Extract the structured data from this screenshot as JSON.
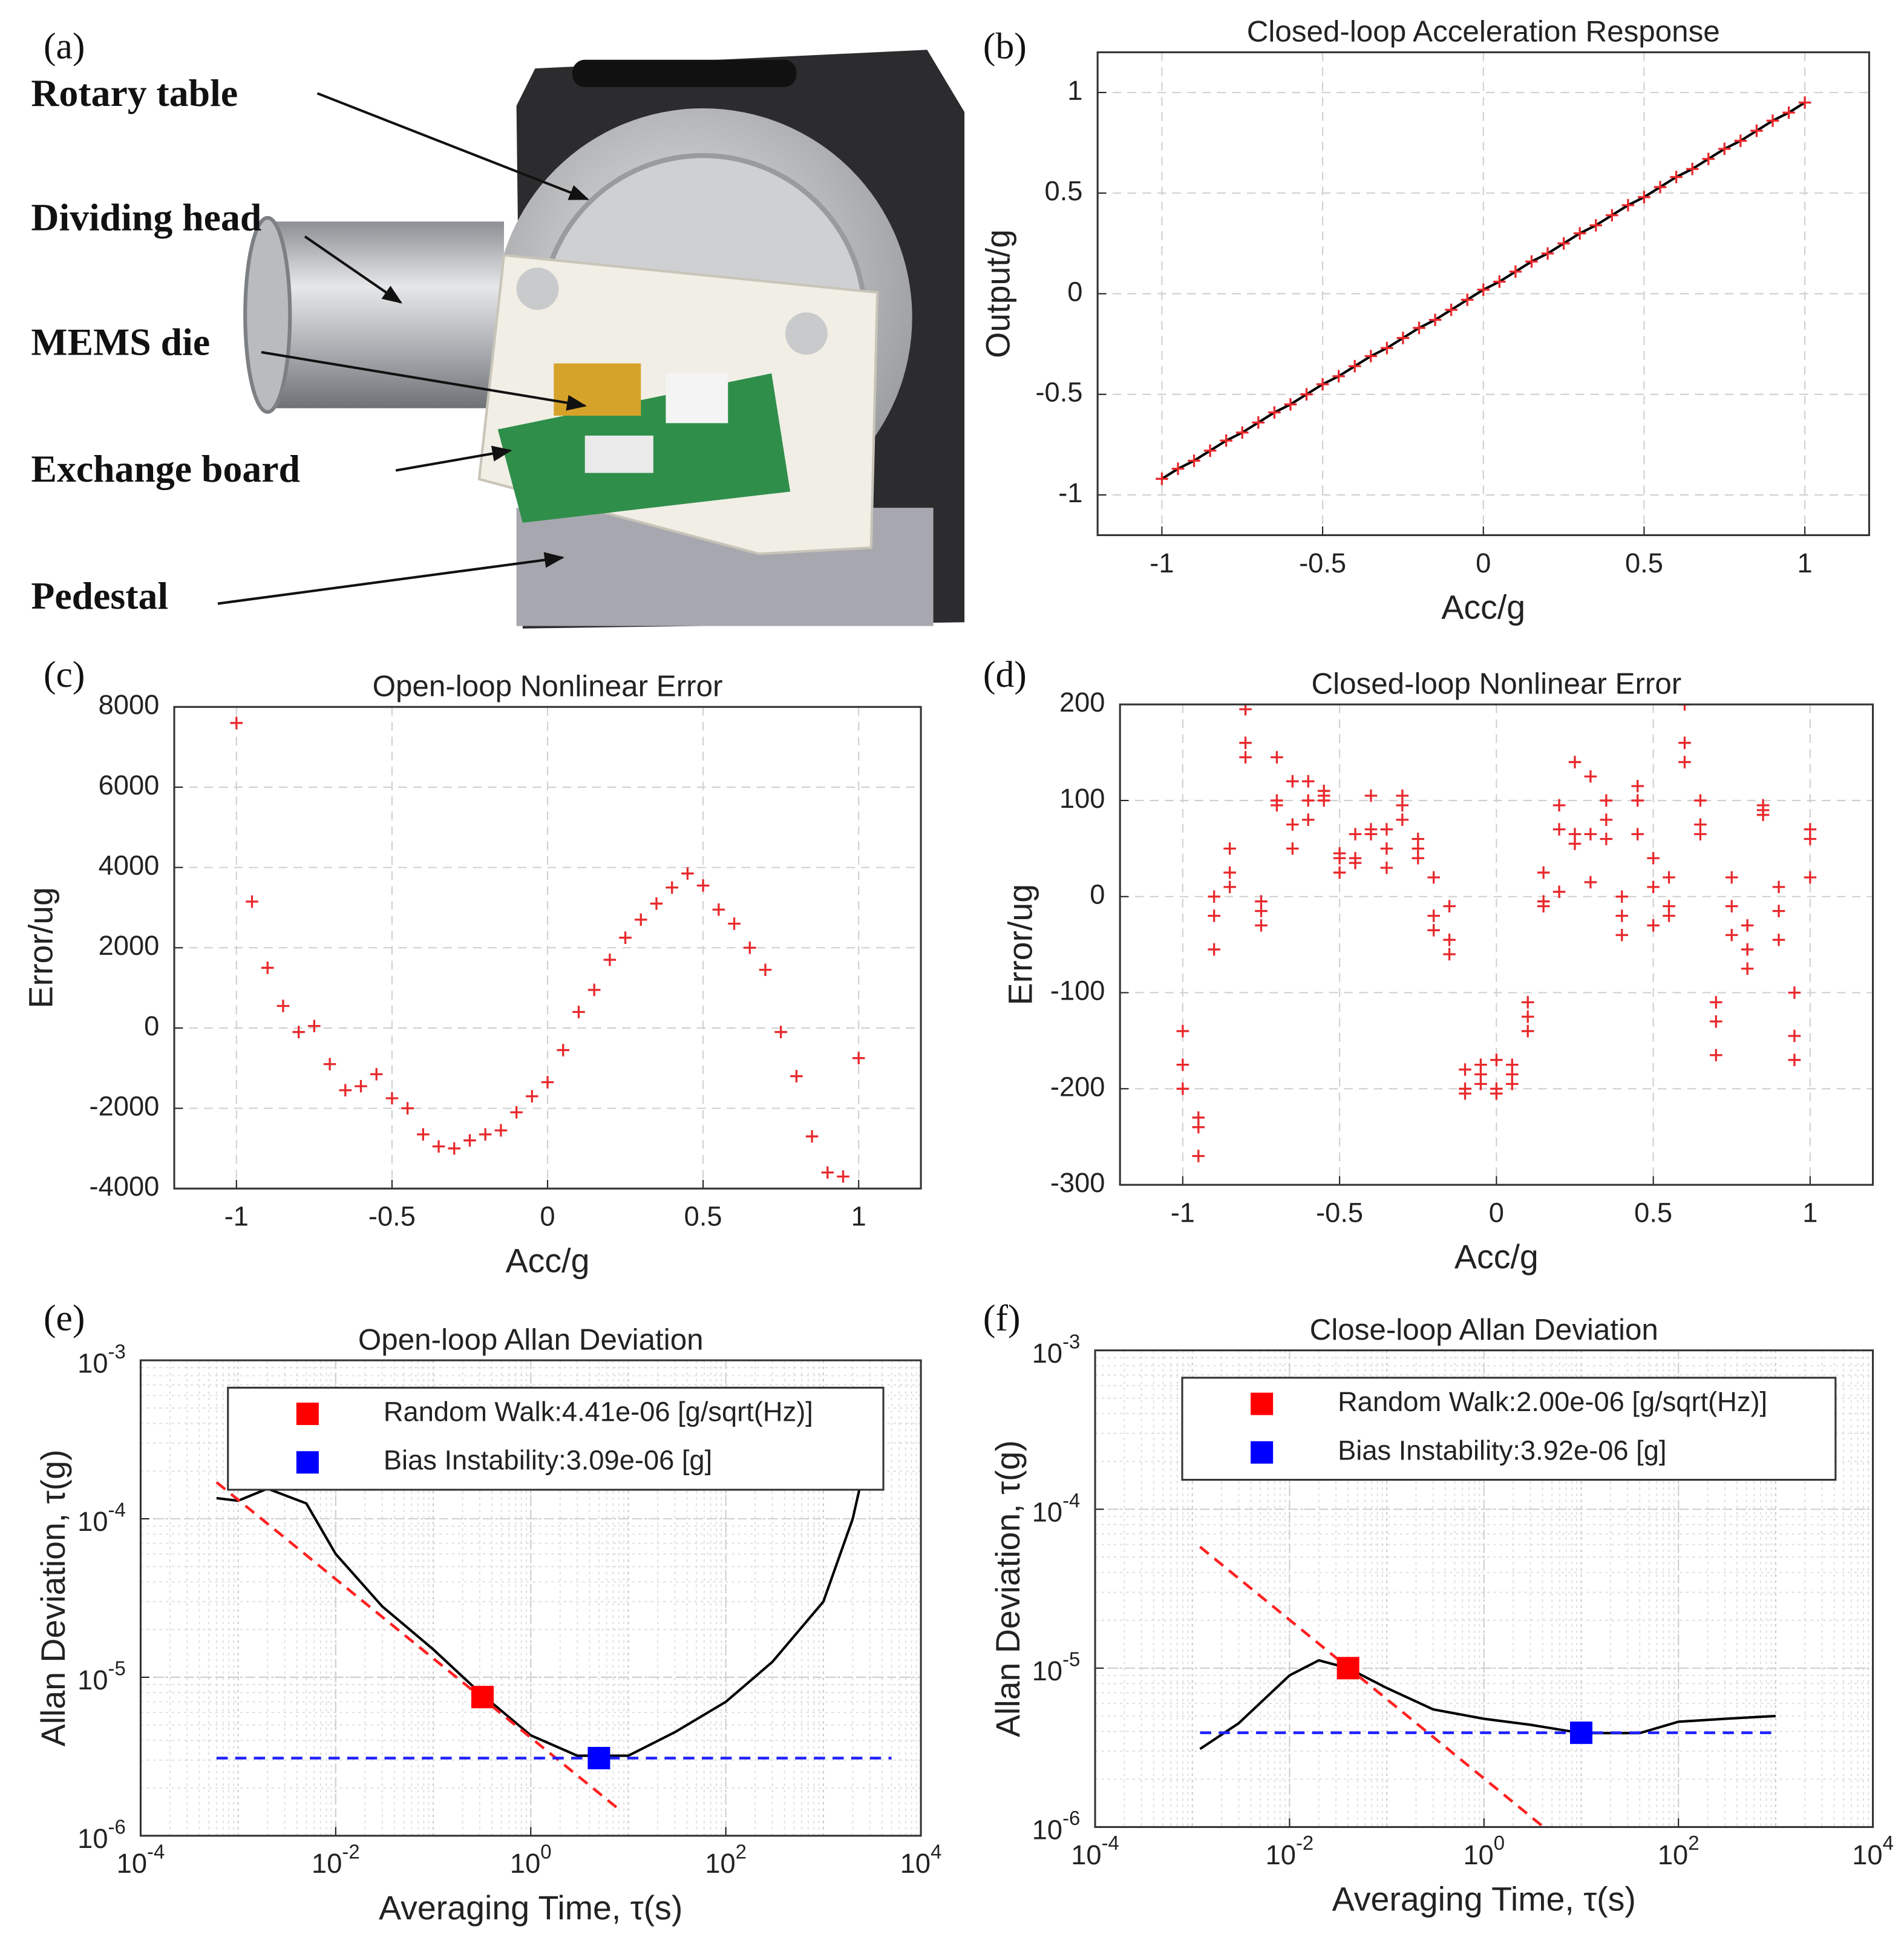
{
  "photo": {
    "panel_label": "(a)",
    "labels": [
      "Rotary table",
      "Dividing head",
      "MEMS die",
      "Exchange board",
      "Pedestal"
    ]
  },
  "chart_data": [
    {
      "type": "line",
      "panel_label": "(b)",
      "title": "Closed-loop Acceleration Response",
      "xlabel": "Acc/g",
      "ylabel": "Output/g",
      "xlim": [
        -1.2,
        1.2
      ],
      "ylim": [
        -1.2,
        1.2
      ],
      "xticks": [
        -1,
        -0.5,
        0,
        0.5,
        1
      ],
      "yticks": [
        -1,
        -0.5,
        0,
        0.5,
        1
      ],
      "grid": true,
      "series": [
        {
          "color": "#000000",
          "line": true,
          "marker": "plus",
          "marker_color": "#e8282b",
          "x": [
            -1,
            -0.95,
            -0.9,
            -0.85,
            -0.8,
            -0.75,
            -0.7,
            -0.65,
            -0.6,
            -0.55,
            -0.5,
            -0.45,
            -0.4,
            -0.35,
            -0.3,
            -0.25,
            -0.2,
            -0.15,
            -0.1,
            -0.05,
            0,
            0.05,
            0.1,
            0.15,
            0.2,
            0.25,
            0.3,
            0.35,
            0.4,
            0.45,
            0.5,
            0.55,
            0.6,
            0.65,
            0.7,
            0.75,
            0.8,
            0.85,
            0.9,
            0.95,
            1
          ],
          "values": [
            -0.92,
            -0.87,
            -0.83,
            -0.78,
            -0.73,
            -0.69,
            -0.64,
            -0.59,
            -0.55,
            -0.5,
            -0.45,
            -0.41,
            -0.36,
            -0.31,
            -0.27,
            -0.22,
            -0.17,
            -0.13,
            -0.08,
            -0.03,
            0.02,
            0.06,
            0.11,
            0.16,
            0.2,
            0.25,
            0.3,
            0.34,
            0.39,
            0.44,
            0.48,
            0.53,
            0.58,
            0.62,
            0.67,
            0.72,
            0.76,
            0.81,
            0.86,
            0.9,
            0.95
          ]
        }
      ]
    },
    {
      "type": "scatter",
      "panel_label": "(c)",
      "title": "Open-loop Nonlinear Error",
      "xlabel": "Acc/g",
      "ylabel": "Error/ug",
      "xlim": [
        -1.2,
        1.2
      ],
      "ylim": [
        -4000,
        8000
      ],
      "xticks": [
        -1,
        -0.5,
        0,
        0.5,
        1
      ],
      "yticks": [
        -4000,
        -2000,
        0,
        2000,
        4000,
        6000,
        8000
      ],
      "grid": true,
      "series": [
        {
          "color": "#e8282b",
          "line": false,
          "marker": "plus",
          "x": [
            -1,
            -0.95,
            -0.9,
            -0.85,
            -0.8,
            -0.75,
            -0.7,
            -0.65,
            -0.6,
            -0.55,
            -0.5,
            -0.45,
            -0.4,
            -0.35,
            -0.3,
            -0.25,
            -0.2,
            -0.15,
            -0.1,
            -0.05,
            0,
            0.05,
            0.1,
            0.15,
            0.2,
            0.25,
            0.3,
            0.35,
            0.4,
            0.45,
            0.5,
            0.55,
            0.6,
            0.65,
            0.7,
            0.75,
            0.8,
            0.85,
            0.9,
            0.95,
            1
          ],
          "values": [
            7600,
            3150,
            1500,
            550,
            -100,
            50,
            -900,
            -1550,
            -1450,
            -1150,
            -1750,
            -2000,
            -2650,
            -2950,
            -3000,
            -2800,
            -2650,
            -2550,
            -2100,
            -1700,
            -1350,
            -550,
            400,
            950,
            1700,
            2250,
            2700,
            3100,
            3500,
            3850,
            3550,
            2950,
            2600,
            2000,
            1450,
            -100,
            -1200,
            -2700,
            -3600,
            -3700,
            -750
          ]
        }
      ]
    },
    {
      "type": "scatter",
      "panel_label": "(d)",
      "title": "Closed-loop Nonlinear Error",
      "xlabel": "Acc/g",
      "ylabel": "Error/ug",
      "xlim": [
        -1.2,
        1.2
      ],
      "ylim": [
        -300,
        200
      ],
      "xticks": [
        -1,
        -0.5,
        0,
        0.5,
        1
      ],
      "yticks": [
        -300,
        -200,
        -100,
        0,
        100,
        200
      ],
      "grid": true,
      "series": [
        {
          "color": "#e8282b",
          "line": false,
          "marker": "plus",
          "x": [
            -1,
            -1,
            -1,
            -0.95,
            -0.95,
            -0.95,
            -0.9,
            -0.9,
            -0.9,
            -0.85,
            -0.85,
            -0.85,
            -0.8,
            -0.8,
            -0.8,
            -0.75,
            -0.75,
            -0.75,
            -0.7,
            -0.7,
            -0.7,
            -0.65,
            -0.65,
            -0.65,
            -0.6,
            -0.6,
            -0.6,
            -0.55,
            -0.55,
            -0.55,
            -0.5,
            -0.5,
            -0.5,
            -0.45,
            -0.45,
            -0.45,
            -0.4,
            -0.4,
            -0.4,
            -0.35,
            -0.35,
            -0.35,
            -0.3,
            -0.3,
            -0.3,
            -0.25,
            -0.25,
            -0.25,
            -0.2,
            -0.2,
            -0.2,
            -0.15,
            -0.15,
            -0.15,
            -0.1,
            -0.1,
            -0.1,
            -0.05,
            -0.05,
            -0.05,
            0,
            0,
            0,
            0.05,
            0.05,
            0.05,
            0.1,
            0.1,
            0.1,
            0.15,
            0.15,
            0.15,
            0.2,
            0.2,
            0.2,
            0.25,
            0.25,
            0.25,
            0.3,
            0.3,
            0.3,
            0.35,
            0.35,
            0.35,
            0.4,
            0.4,
            0.4,
            0.45,
            0.45,
            0.45,
            0.5,
            0.5,
            0.5,
            0.55,
            0.55,
            0.55,
            0.6,
            0.6,
            0.6,
            0.65,
            0.65,
            0.65,
            0.7,
            0.7,
            0.7,
            0.75,
            0.75,
            0.75,
            0.8,
            0.8,
            0.8,
            0.85,
            0.85,
            0.85,
            0.9,
            0.9,
            0.9,
            0.95,
            0.95,
            0.95,
            1,
            1,
            1
          ],
          "values": [
            -140,
            -175,
            -200,
            -230,
            -240,
            -270,
            0,
            -20,
            -55,
            50,
            10,
            25,
            195,
            160,
            145,
            -5,
            -15,
            -30,
            145,
            100,
            95,
            120,
            75,
            50,
            120,
            100,
            80,
            110,
            100,
            105,
            45,
            40,
            25,
            65,
            40,
            35,
            105,
            70,
            65,
            70,
            50,
            30,
            105,
            95,
            80,
            60,
            50,
            40,
            20,
            -20,
            -35,
            -10,
            -45,
            -60,
            -180,
            -200,
            -205,
            -175,
            -185,
            -195,
            -170,
            -200,
            -205,
            -175,
            -185,
            -195,
            -110,
            -125,
            -140,
            25,
            -5,
            -10,
            95,
            70,
            5,
            140,
            65,
            55,
            125,
            65,
            15,
            100,
            80,
            60,
            0,
            -20,
            -40,
            115,
            100,
            65,
            40,
            10,
            -30,
            20,
            -10,
            -20,
            200,
            160,
            140,
            100,
            75,
            65,
            -110,
            -130,
            -165,
            20,
            -10,
            -40,
            -30,
            -55,
            -75,
            95,
            85,
            90,
            10,
            -15,
            -45,
            -100,
            -145,
            -170,
            70,
            60,
            20
          ]
        }
      ]
    },
    {
      "type": "line",
      "panel_label": "(e)",
      "title": "Open-loop Allan Deviation",
      "xlabel": "Averaging Time, τ(s)",
      "ylabel": "Allan Deviation, τ(g)",
      "log_x": true,
      "log_y": true,
      "xlim": [
        0.0001,
        10000
      ],
      "ylim": [
        1e-06,
        0.001
      ],
      "xticks": [
        {
          "value": 0.0001,
          "label": "10-4"
        },
        {
          "value": 0.01,
          "label": "10-2"
        },
        {
          "value": 1,
          "label": "100"
        },
        {
          "value": 100,
          "label": "102"
        },
        {
          "value": 10000,
          "label": "104"
        }
      ],
      "yticks": [
        {
          "value": 1e-06,
          "label": "10-6"
        },
        {
          "value": 1e-05,
          "label": "10-5"
        },
        {
          "value": 0.0001,
          "label": "10-4"
        },
        {
          "value": 0.001,
          "label": "10-3"
        }
      ],
      "grid": true,
      "legend": "upper center",
      "series": [
        {
          "color": "#000000",
          "line": true,
          "x": [
            0.0006,
            0.001,
            0.002,
            0.005,
            0.01,
            0.03,
            0.1,
            0.3,
            1,
            3,
            10,
            30,
            100,
            300,
            1000,
            2000,
            3000
          ],
          "values": [
            0.000135,
            0.00013,
            0.000155,
            0.000125,
            6e-05,
            2.8e-05,
            1.5e-05,
            8e-06,
            4.3e-06,
            3.2e-06,
            3.2e-06,
            4.5e-06,
            7e-06,
            1.25e-05,
            3e-05,
            0.0001,
            0.0003
          ]
        },
        {
          "color": "#ff2020",
          "line": true,
          "dash": true,
          "x": [
            0.0006,
            8
          ],
          "values": [
            0.00017,
            1.47e-06
          ]
        },
        {
          "color": "#2020ff",
          "line": true,
          "dash": true,
          "x": [
            0.0006,
            5000
          ],
          "values": [
            3.09e-06,
            3.09e-06
          ]
        },
        {
          "name": "Random Walk:4.41e-06 [g/sqrt(Hz)]",
          "color": "#ff0000",
          "line": false,
          "marker": "square",
          "x": [
            0.32
          ],
          "values": [
            7.5e-06
          ]
        },
        {
          "name": "Bias Instability:3.09e-06 [g]",
          "color": "#0000ff",
          "line": false,
          "marker": "square",
          "x": [
            5
          ],
          "values": [
            3.09e-06
          ]
        }
      ]
    },
    {
      "type": "line",
      "panel_label": "(f)",
      "title": "Close-loop Allan Deviation",
      "xlabel": "Averaging Time, τ(s)",
      "ylabel": "Allan Deviation, τ(g)",
      "log_x": true,
      "log_y": true,
      "xlim": [
        0.0001,
        10000
      ],
      "ylim": [
        1e-06,
        0.001
      ],
      "xticks": [
        {
          "value": 0.0001,
          "label": "10-4"
        },
        {
          "value": 0.01,
          "label": "10-2"
        },
        {
          "value": 1,
          "label": "100"
        },
        {
          "value": 100,
          "label": "102"
        },
        {
          "value": 10000,
          "label": "104"
        }
      ],
      "yticks": [
        {
          "value": 1e-06,
          "label": "10-6"
        },
        {
          "value": 1e-05,
          "label": "10-5"
        },
        {
          "value": 0.0001,
          "label": "10-4"
        },
        {
          "value": 0.001,
          "label": "10-3"
        }
      ],
      "grid": true,
      "legend": "upper center",
      "series": [
        {
          "color": "#000000",
          "line": true,
          "x": [
            0.0012,
            0.003,
            0.01,
            0.02,
            0.04,
            0.1,
            0.3,
            1,
            3,
            10,
            40,
            100,
            300,
            1000
          ],
          "values": [
            3.1e-06,
            4.5e-06,
            9e-06,
            1.12e-05,
            1e-05,
            7.5e-06,
            5.5e-06,
            4.8e-06,
            4.4e-06,
            3.9e-06,
            3.9e-06,
            4.6e-06,
            4.8e-06,
            5e-06
          ]
        },
        {
          "color": "#ff2020",
          "line": true,
          "dash": true,
          "x": [
            0.0012,
            4.1
          ],
          "values": [
            5.8e-05,
            1e-06
          ]
        },
        {
          "color": "#2020ff",
          "line": true,
          "dash": true,
          "x": [
            0.0012,
            1000
          ],
          "values": [
            3.92e-06,
            3.92e-06
          ]
        },
        {
          "name": "Random Walk:2.00e-06 [g/sqrt(Hz)]",
          "color": "#ff0000",
          "line": false,
          "marker": "square",
          "x": [
            0.04
          ],
          "values": [
            1e-05
          ]
        },
        {
          "name": "Bias Instability:3.92e-06 [g]",
          "color": "#0000ff",
          "line": false,
          "marker": "square",
          "x": [
            10
          ],
          "values": [
            3.92e-06
          ]
        }
      ]
    }
  ]
}
